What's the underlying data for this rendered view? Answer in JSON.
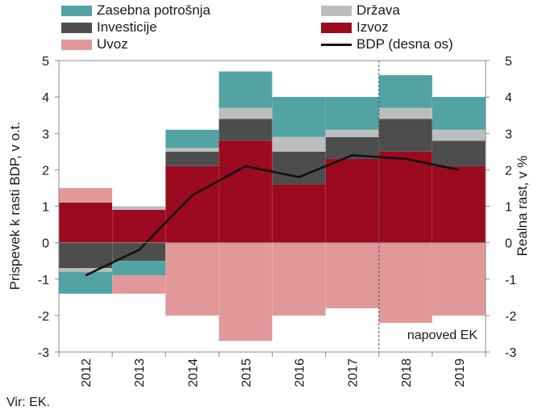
{
  "chart_data": {
    "type": "bar",
    "stacked": true,
    "categories": [
      "2012",
      "2013",
      "2014",
      "2015",
      "2016",
      "2017",
      "2018",
      "2019"
    ],
    "series": [
      {
        "name": "Izvoz",
        "color": "#9b0a1e",
        "values": [
          1.1,
          0.9,
          2.1,
          2.8,
          1.6,
          2.3,
          2.5,
          2.1
        ]
      },
      {
        "name": "Investicije",
        "color": "#4d4d4d",
        "values": [
          -0.7,
          -0.5,
          0.4,
          0.6,
          0.9,
          0.6,
          0.9,
          0.7
        ]
      },
      {
        "name": "Država",
        "color": "#bdbdbd",
        "values": [
          -0.1,
          0.1,
          0.1,
          0.3,
          0.4,
          0.2,
          0.3,
          0.3
        ]
      },
      {
        "name": "Zasebna potrošnja",
        "color": "#52a3a3",
        "values": [
          -0.6,
          -0.4,
          0.5,
          1.0,
          1.1,
          0.9,
          0.9,
          0.9
        ]
      },
      {
        "name": "Uvoz",
        "color": "#e09898",
        "values": [
          0.4,
          -0.5,
          -2.0,
          -2.7,
          -2.0,
          -1.8,
          -2.2,
          -2.0
        ]
      }
    ],
    "line_series": {
      "name": "BDP (desna os)",
      "color": "#111111",
      "values": [
        -0.9,
        -0.2,
        1.3,
        2.1,
        1.8,
        2.4,
        2.3,
        2.0
      ]
    },
    "ylabel": "Prispevek k rasti BDP, v o.t.",
    "y2label": "Realna rast, v %",
    "ylim": [
      -3,
      5
    ],
    "y2lim": [
      -3,
      5
    ],
    "yticks": [
      "5",
      "4",
      "3",
      "2",
      "1",
      "0",
      "-1",
      "-2",
      "-3"
    ],
    "forecast_label": "napoved EK",
    "forecast_from": "2018",
    "legend_position": "top",
    "grid": false
  },
  "legend": [
    {
      "label": "Zasebna potrošnja",
      "color": "#52a3a3",
      "kind": "bar"
    },
    {
      "label": "Država",
      "color": "#bdbdbd",
      "kind": "bar"
    },
    {
      "label": "Investicije",
      "color": "#4d4d4d",
      "kind": "bar"
    },
    {
      "label": "Izvoz",
      "color": "#9b0a1e",
      "kind": "bar"
    },
    {
      "label": "Uvoz",
      "color": "#e09898",
      "kind": "bar"
    },
    {
      "label": "BDP (desna os)",
      "color": "#111111",
      "kind": "line"
    }
  ],
  "source": "Vir: EK."
}
